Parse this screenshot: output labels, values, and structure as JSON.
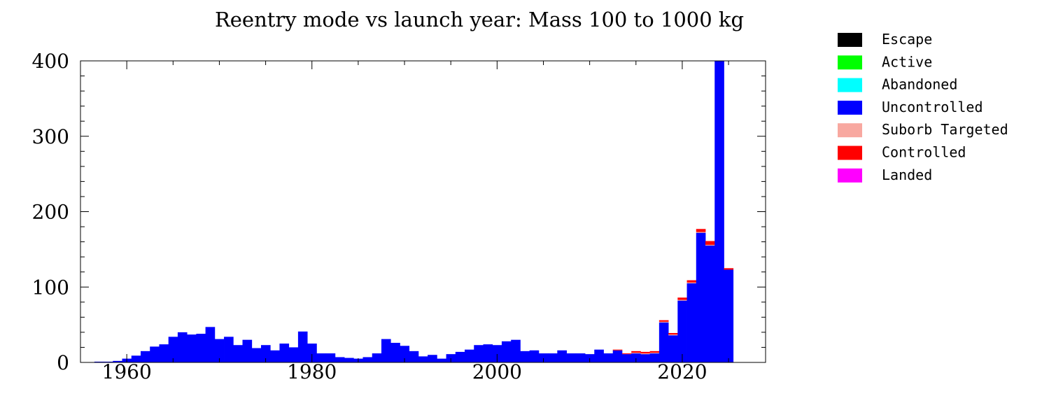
{
  "chart_data": {
    "type": "bar",
    "stacked": true,
    "title": "Reentry mode vs launch year: Mass 100 to 1000 kg",
    "xlabel": "",
    "ylabel": "",
    "xlim": [
      1955,
      2029
    ],
    "ylim": [
      0,
      400
    ],
    "x_ticks": [
      1960,
      1980,
      2000,
      2020
    ],
    "y_ticks": [
      0,
      100,
      200,
      300,
      400
    ],
    "grid": false,
    "legend_position": "right",
    "x": [
      1957,
      1958,
      1959,
      1960,
      1961,
      1962,
      1963,
      1964,
      1965,
      1966,
      1967,
      1968,
      1969,
      1970,
      1971,
      1972,
      1973,
      1974,
      1975,
      1976,
      1977,
      1978,
      1979,
      1980,
      1981,
      1982,
      1983,
      1984,
      1985,
      1986,
      1987,
      1988,
      1989,
      1990,
      1991,
      1992,
      1993,
      1994,
      1995,
      1996,
      1997,
      1998,
      1999,
      2000,
      2001,
      2002,
      2003,
      2004,
      2005,
      2006,
      2007,
      2008,
      2009,
      2010,
      2011,
      2012,
      2013,
      2014,
      2015,
      2016,
      2017,
      2018,
      2019,
      2020,
      2021,
      2022,
      2023,
      2024,
      2025
    ],
    "series": [
      {
        "name": "Escape",
        "color": "#000000",
        "values": [
          0,
          0,
          0,
          0,
          0,
          0,
          0,
          0,
          0,
          0,
          0,
          0,
          0,
          0,
          0,
          0,
          0,
          0,
          0,
          0,
          0,
          0,
          0,
          0,
          0,
          0,
          0,
          0,
          0,
          0,
          0,
          0,
          0,
          0,
          0,
          0,
          0,
          0,
          0,
          0,
          0,
          0,
          0,
          0,
          0,
          0,
          0,
          0,
          0,
          0,
          0,
          0,
          0,
          0,
          0,
          0,
          0,
          0,
          0,
          0,
          0,
          0,
          0,
          0,
          0,
          0,
          0,
          0,
          0
        ]
      },
      {
        "name": "Active",
        "color": "#00ff00",
        "values": [
          0,
          0,
          0,
          0,
          0,
          0,
          0,
          0,
          0,
          0,
          0,
          0,
          0,
          0,
          0,
          0,
          0,
          0,
          0,
          0,
          0,
          0,
          0,
          0,
          0,
          0,
          0,
          0,
          0,
          0,
          0,
          0,
          0,
          0,
          0,
          0,
          0,
          0,
          0,
          0,
          0,
          0,
          0,
          0,
          0,
          0,
          0,
          0,
          0,
          0,
          0,
          0,
          0,
          0,
          0,
          0,
          0,
          0,
          0,
          0,
          0,
          0,
          0,
          0,
          0,
          0,
          0,
          0,
          0
        ]
      },
      {
        "name": "Abandoned",
        "color": "#00ffff",
        "values": [
          0,
          0,
          0,
          0,
          0,
          0,
          0,
          0,
          0,
          0,
          0,
          0,
          0,
          0,
          0,
          0,
          0,
          0,
          0,
          0,
          0,
          0,
          0,
          0,
          0,
          0,
          0,
          0,
          0,
          0,
          0,
          0,
          0,
          0,
          0,
          0,
          0,
          0,
          0,
          0,
          0,
          0,
          0,
          0,
          0,
          0,
          0,
          0,
          0,
          0,
          0,
          0,
          0,
          0,
          0,
          0,
          0,
          0,
          0,
          0,
          0,
          0,
          0,
          0,
          0,
          0,
          0,
          0,
          0
        ]
      },
      {
        "name": "Uncontrolled",
        "color": "#0000ff",
        "values": [
          1,
          1,
          2,
          5,
          9,
          15,
          21,
          24,
          34,
          40,
          37,
          38,
          47,
          31,
          34,
          23,
          30,
          19,
          23,
          16,
          25,
          20,
          41,
          25,
          12,
          12,
          7,
          6,
          5,
          7,
          12,
          31,
          26,
          22,
          15,
          8,
          10,
          5,
          11,
          14,
          17,
          23,
          24,
          23,
          28,
          30,
          15,
          16,
          12,
          12,
          16,
          12,
          12,
          11,
          17,
          12,
          16,
          11,
          12,
          11,
          12,
          53,
          36,
          82,
          105,
          172,
          155,
          400,
          123
        ]
      },
      {
        "name": "Suborb Targeted",
        "color": "#f8a8a0",
        "values": [
          0,
          0,
          0,
          0,
          0,
          0,
          0,
          0,
          0,
          0,
          0,
          0,
          0,
          0,
          0,
          0,
          0,
          0,
          0,
          0,
          0,
          0,
          0,
          0,
          0,
          0,
          0,
          0,
          0,
          0,
          0,
          0,
          0,
          0,
          0,
          0,
          0,
          0,
          0,
          0,
          0,
          0,
          0,
          0,
          0,
          0,
          0,
          0,
          0,
          0,
          0,
          0,
          0,
          0,
          0,
          0,
          0,
          0,
          1,
          1,
          1,
          1,
          1,
          1,
          1,
          1,
          1,
          1,
          0
        ]
      },
      {
        "name": "Controlled",
        "color": "#ff0000",
        "values": [
          0,
          0,
          0,
          0,
          0,
          0,
          0,
          0,
          0,
          0,
          0,
          0,
          0,
          0,
          0,
          0,
          0,
          0,
          0,
          0,
          0,
          0,
          0,
          0,
          0,
          0,
          0,
          0,
          0,
          0,
          0,
          0,
          0,
          0,
          0,
          0,
          0,
          0,
          0,
          0,
          0,
          0,
          0,
          0,
          0,
          0,
          0,
          0,
          0,
          0,
          0,
          0,
          0,
          0,
          0,
          0,
          1,
          1,
          2,
          2,
          2,
          2,
          2,
          3,
          3,
          4,
          5,
          10,
          2
        ]
      },
      {
        "name": "Landed",
        "color": "#ff00ff",
        "values": [
          0,
          0,
          0,
          0,
          0,
          0,
          0,
          0,
          0,
          0,
          0,
          0,
          0,
          0,
          0,
          0,
          0,
          0,
          0,
          0,
          0,
          0,
          0,
          0,
          0,
          0,
          0,
          0,
          0,
          0,
          0,
          0,
          0,
          0,
          0,
          0,
          0,
          0,
          0,
          0,
          0,
          0,
          0,
          0,
          0,
          0,
          0,
          0,
          0,
          0,
          0,
          0,
          0,
          0,
          0,
          0,
          0,
          0,
          0,
          0,
          0,
          0,
          0,
          0,
          0,
          0,
          0,
          0,
          0
        ]
      }
    ]
  }
}
